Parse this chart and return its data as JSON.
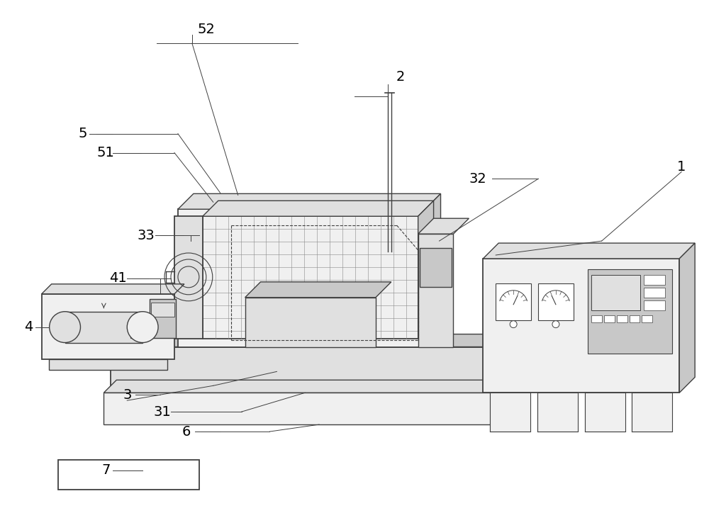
{
  "bg_color": "#ffffff",
  "lc": "#404040",
  "lc_light": "#888888",
  "fill_white": "#ffffff",
  "fill_vlight": "#f0f0f0",
  "fill_light": "#e0e0e0",
  "fill_mid": "#c8c8c8",
  "fill_dark": "#b0b0b0",
  "label_fs": 14
}
